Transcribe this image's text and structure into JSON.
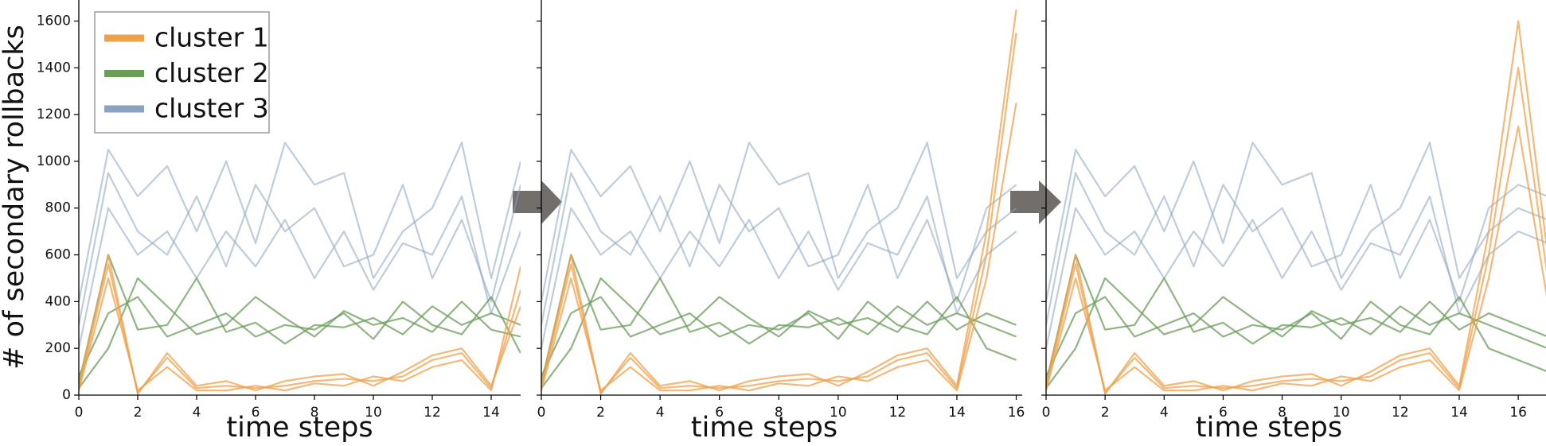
{
  "chart_data": [
    {
      "type": "line",
      "x": [
        0,
        1,
        2,
        3,
        4,
        5,
        6,
        7,
        8,
        9,
        10,
        11,
        12,
        13,
        14,
        15
      ],
      "xlim": [
        0,
        15
      ],
      "xticks": [
        0,
        2,
        4,
        6,
        8,
        10,
        12,
        14
      ],
      "ylim": [
        0,
        1690
      ],
      "yticks": [
        0,
        200,
        400,
        600,
        800,
        1000,
        1200,
        1400,
        1600
      ],
      "xlabel": "time steps",
      "ylabel": "# of secondary rollbacks",
      "legend": "upper left",
      "series": [
        {
          "name": "cluster 3",
          "color": "#8aa3bf",
          "lines": [
            [
              400,
              1050,
              850,
              980,
              700,
              1000,
              650,
              1080,
              900,
              950,
              500,
              700,
              800,
              1080,
              500,
              1000
            ],
            [
              200,
              800,
              600,
              700,
              500,
              700,
              550,
              750,
              500,
              700,
              450,
              650,
              600,
              850,
              350,
              700
            ],
            [
              300,
              950,
              700,
              600,
              850,
              550,
              900,
              700,
              800,
              550,
              600,
              900,
              500,
              750,
              400,
              900
            ]
          ]
        },
        {
          "name": "cluster 2",
          "color": "#6a9c5a",
          "lines": [
            [
              50,
              600,
              280,
              300,
              500,
              270,
              310,
              220,
              300,
              290,
              330,
              260,
              380,
              300,
              350,
              300
            ],
            [
              80,
              350,
              420,
              250,
              300,
              350,
              250,
              300,
              280,
              350,
              240,
              400,
              300,
              260,
              420,
              180
            ],
            [
              30,
              200,
              500,
              380,
              260,
              300,
              420,
              330,
              250,
              360,
              300,
              330,
              270,
              400,
              280,
              250
            ]
          ]
        },
        {
          "name": "cluster 1",
          "color": "#f0a04b",
          "lines": [
            [
              30,
              560,
              10,
              160,
              30,
              40,
              30,
              40,
              60,
              70,
              60,
              80,
              150,
              180,
              30,
              450
            ],
            [
              20,
              500,
              20,
              120,
              20,
              20,
              40,
              20,
              50,
              40,
              80,
              60,
              120,
              150,
              20,
              550
            ],
            [
              40,
              600,
              5,
              180,
              40,
              60,
              20,
              60,
              80,
              90,
              40,
              100,
              170,
              200,
              40,
              380
            ]
          ]
        }
      ]
    },
    {
      "type": "line",
      "x": [
        0,
        1,
        2,
        3,
        4,
        5,
        6,
        7,
        8,
        9,
        10,
        11,
        12,
        13,
        14,
        15,
        16
      ],
      "xlim": [
        0,
        16.2
      ],
      "xticks": [
        0,
        2,
        4,
        6,
        8,
        10,
        12,
        14,
        16
      ],
      "sharey": true,
      "xlabel": "time steps",
      "series": [
        {
          "color": "#8aa3bf",
          "lines": [
            [
              400,
              1050,
              850,
              980,
              700,
              1000,
              650,
              1080,
              900,
              950,
              500,
              700,
              800,
              1080,
              500,
              700,
              800
            ],
            [
              200,
              800,
              600,
              700,
              500,
              700,
              550,
              750,
              500,
              700,
              450,
              650,
              600,
              850,
              350,
              600,
              700
            ],
            [
              300,
              950,
              700,
              600,
              850,
              550,
              900,
              700,
              800,
              550,
              600,
              900,
              500,
              750,
              400,
              800,
              900
            ]
          ]
        },
        {
          "color": "#6a9c5a",
          "lines": [
            [
              50,
              600,
              280,
              300,
              500,
              270,
              310,
              220,
              300,
              290,
              330,
              260,
              380,
              300,
              350,
              300,
              250
            ],
            [
              80,
              350,
              420,
              250,
              300,
              350,
              250,
              300,
              280,
              350,
              240,
              400,
              300,
              260,
              420,
              200,
              150
            ],
            [
              30,
              200,
              500,
              380,
              260,
              300,
              420,
              330,
              250,
              360,
              300,
              330,
              270,
              400,
              280,
              350,
              300
            ]
          ]
        },
        {
          "color": "#f0a04b",
          "lines": [
            [
              30,
              560,
              10,
              160,
              30,
              40,
              30,
              40,
              60,
              70,
              60,
              80,
              150,
              180,
              30,
              600,
              1550
            ],
            [
              20,
              500,
              20,
              120,
              20,
              20,
              40,
              20,
              50,
              40,
              80,
              60,
              120,
              150,
              20,
              500,
              1250
            ],
            [
              40,
              600,
              5,
              180,
              40,
              60,
              20,
              60,
              80,
              90,
              40,
              100,
              170,
              200,
              40,
              700,
              1650
            ]
          ]
        }
      ]
    },
    {
      "type": "line",
      "x": [
        0,
        1,
        2,
        3,
        4,
        5,
        6,
        7,
        8,
        9,
        10,
        11,
        12,
        13,
        14,
        15,
        16,
        17
      ],
      "xlim": [
        0,
        16.94
      ],
      "xticks": [
        0,
        2,
        4,
        6,
        8,
        10,
        12,
        14,
        16
      ],
      "sharey": true,
      "xlabel": "time steps",
      "series": [
        {
          "color": "#8aa3bf",
          "lines": [
            [
              400,
              1050,
              850,
              980,
              700,
              1000,
              650,
              1080,
              900,
              950,
              500,
              700,
              800,
              1080,
              500,
              700,
              800,
              750
            ],
            [
              200,
              800,
              600,
              700,
              500,
              700,
              550,
              750,
              500,
              700,
              450,
              650,
              600,
              850,
              350,
              600,
              700,
              650
            ],
            [
              300,
              950,
              700,
              600,
              850,
              550,
              900,
              700,
              800,
              550,
              600,
              900,
              500,
              750,
              400,
              800,
              900,
              850
            ]
          ]
        },
        {
          "color": "#6a9c5a",
          "lines": [
            [
              50,
              600,
              280,
              300,
              500,
              270,
              310,
              220,
              300,
              290,
              330,
              260,
              380,
              300,
              350,
              300,
              250,
              200
            ],
            [
              80,
              350,
              420,
              250,
              300,
              350,
              250,
              300,
              280,
              350,
              240,
              400,
              300,
              260,
              420,
              200,
              150,
              100
            ],
            [
              30,
              200,
              500,
              380,
              260,
              300,
              420,
              330,
              250,
              360,
              300,
              330,
              270,
              400,
              280,
              350,
              300,
              250
            ]
          ]
        },
        {
          "color": "#f0a04b",
          "lines": [
            [
              30,
              560,
              10,
              160,
              30,
              40,
              30,
              40,
              60,
              70,
              60,
              80,
              150,
              180,
              30,
              600,
              1400,
              500
            ],
            [
              20,
              500,
              20,
              120,
              20,
              20,
              40,
              20,
              50,
              40,
              80,
              60,
              120,
              150,
              20,
              500,
              1150,
              400
            ],
            [
              40,
              600,
              5,
              180,
              40,
              60,
              20,
              60,
              80,
              90,
              40,
              100,
              170,
              200,
              40,
              700,
              1600,
              600
            ]
          ]
        }
      ]
    }
  ]
}
